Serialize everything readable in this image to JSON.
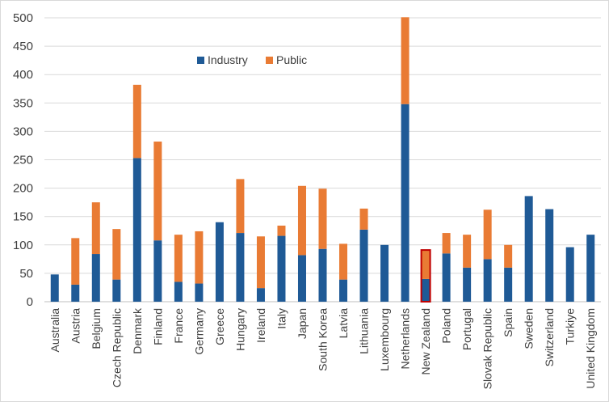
{
  "chart_data": {
    "type": "bar",
    "stacked": true,
    "title": "",
    "xlabel": "",
    "ylabel": "",
    "ylim": [
      0,
      500
    ],
    "yticks": [
      0,
      50,
      100,
      150,
      200,
      250,
      300,
      350,
      400,
      450,
      500
    ],
    "grid": true,
    "legend_position": "top-center",
    "categories": [
      "Australia",
      "Austria",
      "Belgium",
      "Czech Republic",
      "Denmark",
      "Finland",
      "France",
      "Germany",
      "Greece",
      "Hungary",
      "Ireland",
      "Italy",
      "Japan",
      "South Korea",
      "Latvia",
      "Lithuania",
      "Luxembourg",
      "Netherlands",
      "New Zealand",
      "Poland",
      "Portugal",
      "Slovak Republic",
      "Spain",
      "Sweden",
      "Switzerland",
      "Turkiye",
      "United Kingdom"
    ],
    "series": [
      {
        "name": "Industry",
        "color": "#1f5a96",
        "values": [
          48,
          30,
          84,
          39,
          253,
          108,
          35,
          32,
          140,
          121,
          24,
          116,
          82,
          93,
          39,
          127,
          100,
          348,
          40,
          85,
          60,
          75,
          60,
          186,
          163,
          96,
          118
        ]
      },
      {
        "name": "Public",
        "color": "#e97b34",
        "values": [
          0,
          82,
          91,
          89,
          129,
          174,
          83,
          92,
          0,
          95,
          91,
          18,
          122,
          106,
          63,
          37,
          0,
          153,
          51,
          36,
          58,
          87,
          40,
          0,
          0,
          0,
          0
        ]
      }
    ],
    "highlighted_category": "New Zealand",
    "highlight_color": "#c00000"
  }
}
